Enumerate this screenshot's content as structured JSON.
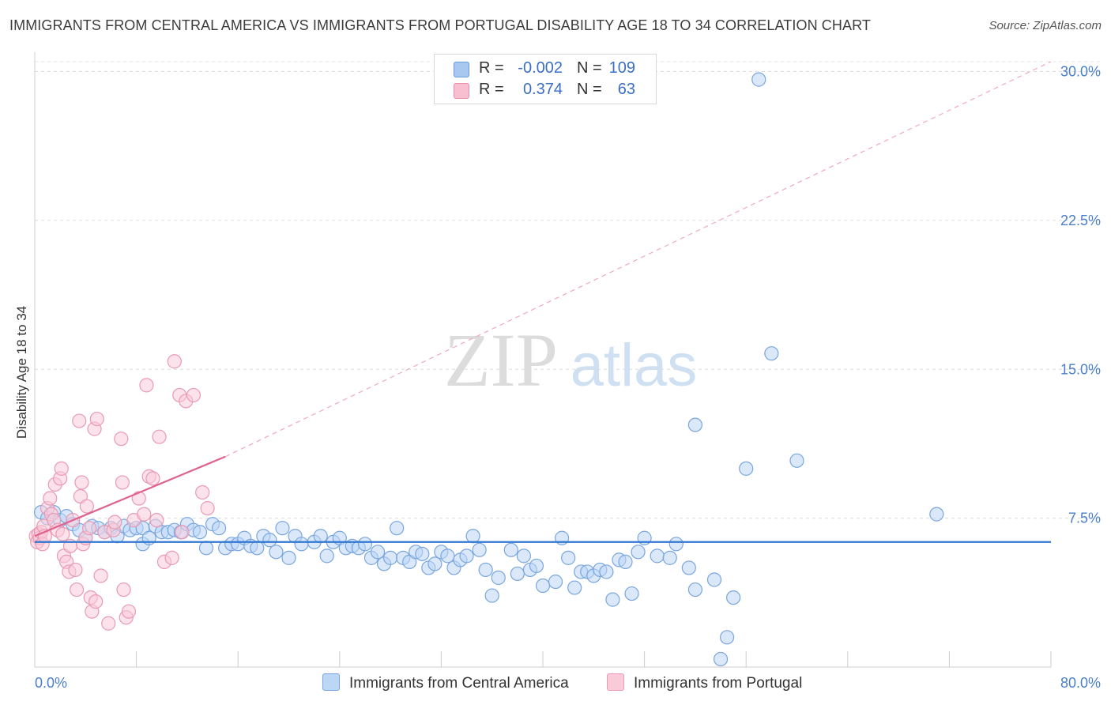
{
  "title": "IMMIGRANTS FROM CENTRAL AMERICA VS IMMIGRANTS FROM PORTUGAL DISABILITY AGE 18 TO 34 CORRELATION CHART",
  "source": "Source: ZipAtlas.com",
  "watermark": {
    "zip": "ZIP",
    "atlas": "atlas"
  },
  "legend": {
    "r_label": "R =",
    "n_label": "N =",
    "entries": [
      {
        "r": "-0.002",
        "n": "109",
        "color": "#a9c8f0",
        "border": "#6a9ad8"
      },
      {
        "r": "0.374",
        "n": "63",
        "color": "#f7bfd0",
        "border": "#e88aa8"
      }
    ]
  },
  "bottom_legend": [
    {
      "label": "Immigrants from Central America",
      "color": "#bcd6f6",
      "border": "#7aa6de"
    },
    {
      "label": "Immigrants from Portugal",
      "color": "#f9cad8",
      "border": "#e99ab4"
    }
  ],
  "chart_data": {
    "type": "scatter",
    "title": "IMMIGRANTS FROM CENTRAL AMERICA VS IMMIGRANTS FROM PORTUGAL DISABILITY AGE 18 TO 34 CORRELATION CHART",
    "xlabel": "",
    "ylabel": "Disability Age 18 to 34",
    "xlim": [
      0,
      80
    ],
    "ylim": [
      0,
      30.5
    ],
    "x_tick_labels": [
      "0.0%",
      "80.0%"
    ],
    "y_ticks": [
      7.5,
      15.0,
      22.5,
      30.0
    ],
    "y_tick_labels": [
      "7.5%",
      "15.0%",
      "22.5%",
      "30.0%"
    ],
    "grid": true,
    "series": [
      {
        "name": "Immigrants from Central America",
        "color": "#7aa6de",
        "fill": "#bcd6f6",
        "trend": {
          "x0": 0,
          "y0": 6.3,
          "x1": 80,
          "y1": 6.3,
          "color": "#2f77d0"
        },
        "points": [
          [
            0.5,
            7.8
          ],
          [
            1.0,
            7.5
          ],
          [
            1.5,
            7.8
          ],
          [
            2.0,
            7.4
          ],
          [
            2.5,
            7.6
          ],
          [
            3.0,
            7.2
          ],
          [
            3.5,
            6.9
          ],
          [
            4.0,
            6.5
          ],
          [
            4.5,
            7.1
          ],
          [
            5.0,
            7.0
          ],
          [
            5.5,
            6.8
          ],
          [
            6.0,
            7.0
          ],
          [
            6.5,
            6.6
          ],
          [
            7.0,
            7.1
          ],
          [
            7.5,
            6.9
          ],
          [
            8.0,
            7.0
          ],
          [
            8.5,
            7.0
          ],
          [
            8.5,
            6.2
          ],
          [
            9.0,
            6.5
          ],
          [
            9.5,
            7.1
          ],
          [
            10.0,
            6.8
          ],
          [
            10.5,
            6.8
          ],
          [
            11.0,
            6.9
          ],
          [
            11.5,
            6.8
          ],
          [
            12.0,
            7.2
          ],
          [
            12.5,
            6.9
          ],
          [
            13.0,
            6.8
          ],
          [
            13.5,
            6.0
          ],
          [
            14.0,
            7.2
          ],
          [
            14.5,
            7.0
          ],
          [
            15.0,
            6.0
          ],
          [
            15.5,
            6.2
          ],
          [
            16.0,
            6.2
          ],
          [
            16.5,
            6.5
          ],
          [
            17.0,
            6.1
          ],
          [
            17.5,
            6.0
          ],
          [
            18.0,
            6.6
          ],
          [
            18.5,
            6.4
          ],
          [
            19.0,
            5.8
          ],
          [
            19.5,
            7.0
          ],
          [
            20.0,
            5.5
          ],
          [
            20.5,
            6.6
          ],
          [
            21.0,
            6.2
          ],
          [
            22.0,
            6.3
          ],
          [
            22.5,
            6.6
          ],
          [
            23.0,
            5.6
          ],
          [
            23.5,
            6.3
          ],
          [
            24.0,
            6.5
          ],
          [
            24.5,
            6.0
          ],
          [
            25.0,
            6.1
          ],
          [
            25.5,
            6.0
          ],
          [
            26.0,
            6.2
          ],
          [
            26.5,
            5.5
          ],
          [
            27.0,
            5.8
          ],
          [
            27.5,
            5.2
          ],
          [
            28.0,
            5.5
          ],
          [
            28.5,
            7.0
          ],
          [
            29.0,
            5.5
          ],
          [
            29.5,
            5.3
          ],
          [
            30.0,
            5.8
          ],
          [
            30.5,
            5.7
          ],
          [
            31.0,
            5.0
          ],
          [
            31.5,
            5.2
          ],
          [
            32.0,
            5.8
          ],
          [
            32.5,
            5.6
          ],
          [
            33.0,
            5.0
          ],
          [
            33.5,
            5.4
          ],
          [
            34.0,
            5.6
          ],
          [
            34.5,
            6.6
          ],
          [
            35.0,
            5.9
          ],
          [
            35.5,
            4.9
          ],
          [
            36.0,
            3.6
          ],
          [
            36.5,
            4.5
          ],
          [
            37.5,
            5.9
          ],
          [
            38.0,
            4.7
          ],
          [
            38.5,
            5.6
          ],
          [
            39.0,
            4.9
          ],
          [
            39.5,
            5.1
          ],
          [
            40.0,
            4.1
          ],
          [
            41.0,
            4.3
          ],
          [
            41.5,
            6.5
          ],
          [
            42.0,
            5.5
          ],
          [
            42.5,
            4.0
          ],
          [
            43.0,
            4.8
          ],
          [
            43.5,
            4.8
          ],
          [
            44.0,
            4.6
          ],
          [
            44.5,
            4.9
          ],
          [
            45.0,
            4.8
          ],
          [
            45.5,
            3.4
          ],
          [
            46.0,
            5.4
          ],
          [
            46.5,
            5.3
          ],
          [
            47.0,
            3.7
          ],
          [
            47.5,
            5.8
          ],
          [
            48.0,
            6.5
          ],
          [
            49.0,
            5.6
          ],
          [
            50.0,
            5.5
          ],
          [
            50.5,
            6.2
          ],
          [
            51.5,
            5.0
          ],
          [
            52.0,
            3.9
          ],
          [
            52.0,
            12.2
          ],
          [
            53.5,
            4.4
          ],
          [
            54.5,
            1.5
          ],
          [
            55.0,
            3.5
          ],
          [
            56.0,
            10.0
          ],
          [
            58.0,
            15.8
          ],
          [
            60.0,
            10.4
          ],
          [
            57.0,
            29.6
          ],
          [
            71.0,
            7.7
          ],
          [
            54.0,
            0.4
          ]
        ]
      },
      {
        "name": "Immigrants from Portugal",
        "color": "#e99ab4",
        "fill": "#f9cad8",
        "trend": {
          "x0": 0,
          "y0": 6.6,
          "x1": 15,
          "y1": 10.6,
          "color": "#e0628e",
          "extend_to": {
            "x": 80,
            "y": 30.5
          }
        },
        "points": [
          [
            0.1,
            6.6
          ],
          [
            0.2,
            6.3
          ],
          [
            0.3,
            6.7
          ],
          [
            0.4,
            6.5
          ],
          [
            0.5,
            6.8
          ],
          [
            0.6,
            6.2
          ],
          [
            0.7,
            7.1
          ],
          [
            0.8,
            6.6
          ],
          [
            1.0,
            8.0
          ],
          [
            1.2,
            8.5
          ],
          [
            1.3,
            7.7
          ],
          [
            1.5,
            7.4
          ],
          [
            1.6,
            9.2
          ],
          [
            1.8,
            6.9
          ],
          [
            2.0,
            9.5
          ],
          [
            2.1,
            10.0
          ],
          [
            2.2,
            6.7
          ],
          [
            2.3,
            5.6
          ],
          [
            2.5,
            5.3
          ],
          [
            2.7,
            4.8
          ],
          [
            2.8,
            6.1
          ],
          [
            3.0,
            7.4
          ],
          [
            3.2,
            4.9
          ],
          [
            3.3,
            3.9
          ],
          [
            3.5,
            12.4
          ],
          [
            3.6,
            8.6
          ],
          [
            3.7,
            9.3
          ],
          [
            3.8,
            6.2
          ],
          [
            4.0,
            6.5
          ],
          [
            4.1,
            8.1
          ],
          [
            4.3,
            7.0
          ],
          [
            4.4,
            3.5
          ],
          [
            4.5,
            2.8
          ],
          [
            4.7,
            12.0
          ],
          [
            4.8,
            3.3
          ],
          [
            4.9,
            12.5
          ],
          [
            5.2,
            4.6
          ],
          [
            5.5,
            6.8
          ],
          [
            5.8,
            2.2
          ],
          [
            6.2,
            6.9
          ],
          [
            6.3,
            7.3
          ],
          [
            6.8,
            11.5
          ],
          [
            6.9,
            9.3
          ],
          [
            7.0,
            3.9
          ],
          [
            7.2,
            2.5
          ],
          [
            7.4,
            2.8
          ],
          [
            7.8,
            7.4
          ],
          [
            8.2,
            8.5
          ],
          [
            8.6,
            7.7
          ],
          [
            8.8,
            14.2
          ],
          [
            9.0,
            9.6
          ],
          [
            9.3,
            9.5
          ],
          [
            9.6,
            7.4
          ],
          [
            9.8,
            11.6
          ],
          [
            10.2,
            5.3
          ],
          [
            10.8,
            5.5
          ],
          [
            11.0,
            15.4
          ],
          [
            11.4,
            13.7
          ],
          [
            11.6,
            6.8
          ],
          [
            11.9,
            13.4
          ],
          [
            12.5,
            13.7
          ],
          [
            13.2,
            8.8
          ],
          [
            13.6,
            8.0
          ]
        ]
      }
    ]
  }
}
